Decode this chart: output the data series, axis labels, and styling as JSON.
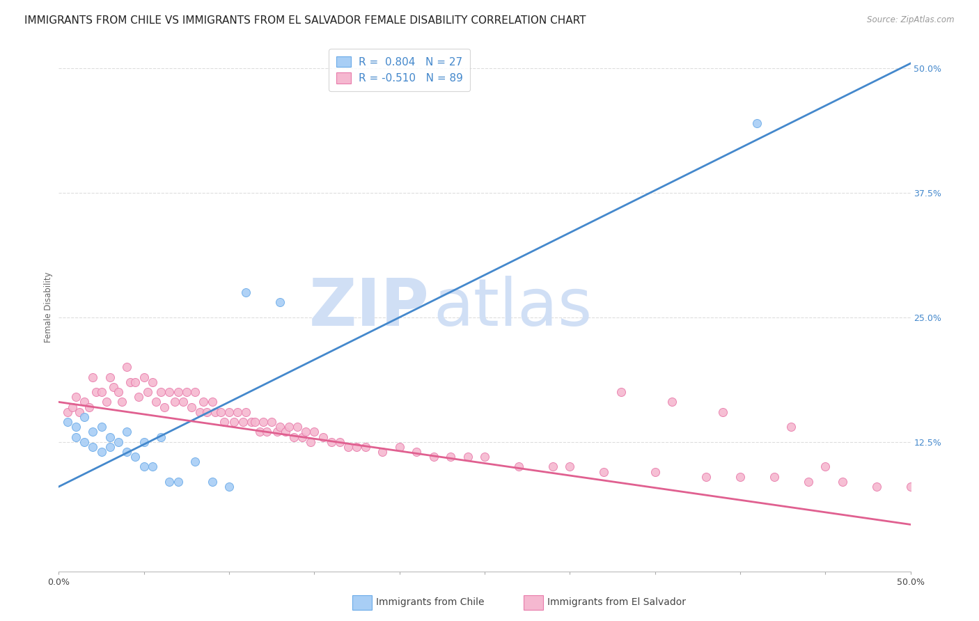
{
  "title": "IMMIGRANTS FROM CHILE VS IMMIGRANTS FROM EL SALVADOR FEMALE DISABILITY CORRELATION CHART",
  "source": "Source: ZipAtlas.com",
  "ylabel": "Female Disability",
  "xlim": [
    0.0,
    0.5
  ],
  "ylim": [
    -0.005,
    0.525
  ],
  "yticks": [
    0.125,
    0.25,
    0.375,
    0.5
  ],
  "ytick_labels": [
    "12.5%",
    "25.0%",
    "37.5%",
    "50.0%"
  ],
  "xticks": [
    0.0,
    0.05,
    0.1,
    0.15,
    0.2,
    0.25,
    0.3,
    0.35,
    0.4,
    0.45,
    0.5
  ],
  "chile_color": "#a8cef5",
  "chile_edge_color": "#6aaae8",
  "salvador_color": "#f5b8d0",
  "salvador_edge_color": "#e87aaa",
  "line_chile_color": "#4488cc",
  "line_salvador_color": "#e06090",
  "legend_chile_R": "0.804",
  "legend_chile_N": "27",
  "legend_salvador_R": "-0.510",
  "legend_salvador_N": "89",
  "watermark_zip": "ZIP",
  "watermark_atlas": "atlas",
  "watermark_color": "#d0dff5",
  "chile_scatter_x": [
    0.005,
    0.01,
    0.01,
    0.015,
    0.015,
    0.02,
    0.02,
    0.025,
    0.025,
    0.03,
    0.03,
    0.035,
    0.04,
    0.04,
    0.045,
    0.05,
    0.05,
    0.055,
    0.06,
    0.065,
    0.07,
    0.08,
    0.09,
    0.1,
    0.11,
    0.13,
    0.41
  ],
  "chile_scatter_y": [
    0.145,
    0.14,
    0.13,
    0.15,
    0.125,
    0.135,
    0.12,
    0.14,
    0.115,
    0.13,
    0.12,
    0.125,
    0.135,
    0.115,
    0.11,
    0.125,
    0.1,
    0.1,
    0.13,
    0.085,
    0.085,
    0.105,
    0.085,
    0.08,
    0.275,
    0.265,
    0.445
  ],
  "salvador_scatter_x": [
    0.005,
    0.008,
    0.01,
    0.012,
    0.015,
    0.018,
    0.02,
    0.022,
    0.025,
    0.028,
    0.03,
    0.032,
    0.035,
    0.037,
    0.04,
    0.042,
    0.045,
    0.047,
    0.05,
    0.052,
    0.055,
    0.057,
    0.06,
    0.062,
    0.065,
    0.068,
    0.07,
    0.073,
    0.075,
    0.078,
    0.08,
    0.083,
    0.085,
    0.087,
    0.09,
    0.092,
    0.095,
    0.097,
    0.1,
    0.103,
    0.105,
    0.108,
    0.11,
    0.113,
    0.115,
    0.118,
    0.12,
    0.122,
    0.125,
    0.128,
    0.13,
    0.133,
    0.135,
    0.138,
    0.14,
    0.143,
    0.145,
    0.148,
    0.15,
    0.155,
    0.16,
    0.165,
    0.17,
    0.175,
    0.18,
    0.19,
    0.2,
    0.21,
    0.22,
    0.23,
    0.24,
    0.25,
    0.27,
    0.29,
    0.3,
    0.32,
    0.35,
    0.38,
    0.4,
    0.42,
    0.44,
    0.46,
    0.48,
    0.5,
    0.33,
    0.36,
    0.39,
    0.43,
    0.45
  ],
  "salvador_scatter_y": [
    0.155,
    0.16,
    0.17,
    0.155,
    0.165,
    0.16,
    0.19,
    0.175,
    0.175,
    0.165,
    0.19,
    0.18,
    0.175,
    0.165,
    0.2,
    0.185,
    0.185,
    0.17,
    0.19,
    0.175,
    0.185,
    0.165,
    0.175,
    0.16,
    0.175,
    0.165,
    0.175,
    0.165,
    0.175,
    0.16,
    0.175,
    0.155,
    0.165,
    0.155,
    0.165,
    0.155,
    0.155,
    0.145,
    0.155,
    0.145,
    0.155,
    0.145,
    0.155,
    0.145,
    0.145,
    0.135,
    0.145,
    0.135,
    0.145,
    0.135,
    0.14,
    0.135,
    0.14,
    0.13,
    0.14,
    0.13,
    0.135,
    0.125,
    0.135,
    0.13,
    0.125,
    0.125,
    0.12,
    0.12,
    0.12,
    0.115,
    0.12,
    0.115,
    0.11,
    0.11,
    0.11,
    0.11,
    0.1,
    0.1,
    0.1,
    0.095,
    0.095,
    0.09,
    0.09,
    0.09,
    0.085,
    0.085,
    0.08,
    0.08,
    0.175,
    0.165,
    0.155,
    0.14,
    0.1
  ],
  "chile_line_x": [
    0.0,
    0.5
  ],
  "chile_line_y": [
    0.08,
    0.505
  ],
  "salvador_line_x": [
    0.0,
    0.5
  ],
  "salvador_line_y": [
    0.165,
    0.042
  ],
  "background_color": "#ffffff",
  "grid_color": "#dddddd",
  "title_fontsize": 11,
  "axis_label_fontsize": 8.5,
  "tick_fontsize": 9,
  "legend_fontsize": 11
}
